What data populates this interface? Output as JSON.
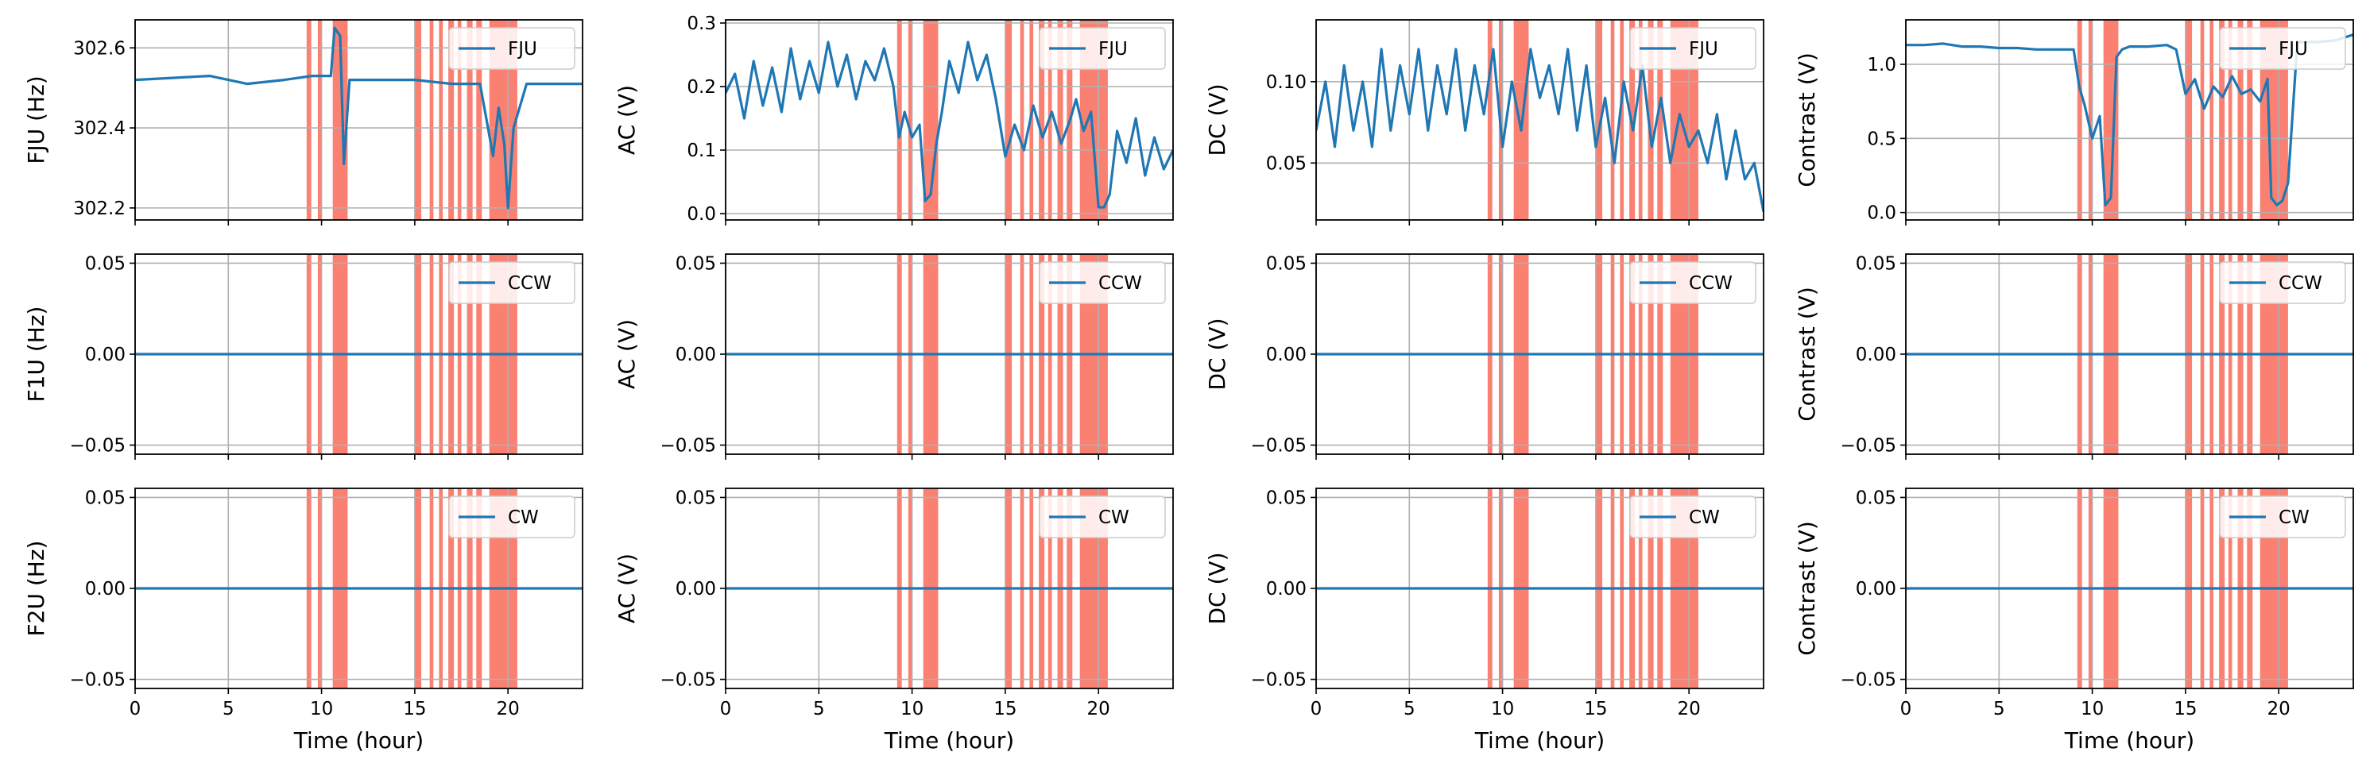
{
  "colors": {
    "series_line": "#1f77b4",
    "event_band": "#fa8072",
    "grid": "#b0b0b0",
    "axis": "#000000",
    "legend_border": "#cccccc"
  },
  "chart_data": {
    "type": "line",
    "layout": "3x4 grid of subplots, shared x axis per column",
    "x_label": "Time (hour)",
    "x_lim": [
      0,
      24
    ],
    "x_ticks": [
      0,
      5,
      10,
      15,
      20
    ],
    "x_tick_labels": [
      "0",
      "5",
      "10",
      "15",
      "20"
    ],
    "grid": true,
    "legend_position": "upper right",
    "highlighted_intervals_hours": [
      [
        9.2,
        9.45
      ],
      [
        9.8,
        10.0
      ],
      [
        10.6,
        11.4
      ],
      [
        15.0,
        15.35
      ],
      [
        15.8,
        16.0
      ],
      [
        16.3,
        16.5
      ],
      [
        16.8,
        17.1
      ],
      [
        17.3,
        17.5
      ],
      [
        17.8,
        18.1
      ],
      [
        18.3,
        18.6
      ],
      [
        19.0,
        20.5
      ]
    ],
    "rows": [
      {
        "legend": "FJU",
        "panels": [
          {
            "ylabel": "FJU (Hz)",
            "ylim": [
              302.17,
              302.67
            ],
            "yticks": [
              302.2,
              302.4,
              302.6
            ],
            "ytick_labels": [
              "302.2",
              "302.4",
              "302.6"
            ],
            "series": {
              "x": [
                0,
                2,
                4,
                5,
                6,
                8,
                9.5,
                10.5,
                10.7,
                11.0,
                11.2,
                11.5,
                13,
                15,
                17,
                18.5,
                19.2,
                19.5,
                19.8,
                20.0,
                20.3,
                21,
                22.5,
                24
              ],
              "y": [
                302.52,
                302.525,
                302.53,
                302.52,
                302.51,
                302.52,
                302.53,
                302.53,
                302.65,
                302.63,
                302.31,
                302.52,
                302.52,
                302.52,
                302.51,
                302.51,
                302.33,
                302.45,
                302.36,
                302.2,
                302.4,
                302.51,
                302.51,
                302.51
              ]
            }
          },
          {
            "ylabel": "AC (V)",
            "ylim": [
              -0.01,
              0.305
            ],
            "yticks": [
              0.0,
              0.1,
              0.2,
              0.3
            ],
            "ytick_labels": [
              "0.0",
              "0.1",
              "0.2",
              "0.3"
            ],
            "series": {
              "x": [
                0,
                0.5,
                1,
                1.5,
                2,
                2.5,
                3,
                3.5,
                4,
                4.5,
                5,
                5.5,
                6,
                6.5,
                7,
                7.5,
                8,
                8.5,
                9,
                9.3,
                9.6,
                10.0,
                10.4,
                10.7,
                11.0,
                11.3,
                11.6,
                12.0,
                12.5,
                13.0,
                13.5,
                14.0,
                14.5,
                15.0,
                15.5,
                16.0,
                16.5,
                17.0,
                17.5,
                18.0,
                18.5,
                18.8,
                19.2,
                19.6,
                20.0,
                20.3,
                20.6,
                21.0,
                21.5,
                22.0,
                22.5,
                23.0,
                23.5,
                24.0
              ],
              "y": [
                0.19,
                0.22,
                0.15,
                0.24,
                0.17,
                0.23,
                0.16,
                0.26,
                0.18,
                0.24,
                0.19,
                0.27,
                0.2,
                0.25,
                0.18,
                0.24,
                0.21,
                0.26,
                0.2,
                0.12,
                0.16,
                0.12,
                0.14,
                0.02,
                0.03,
                0.11,
                0.16,
                0.24,
                0.19,
                0.27,
                0.21,
                0.25,
                0.18,
                0.09,
                0.14,
                0.1,
                0.17,
                0.12,
                0.16,
                0.11,
                0.15,
                0.18,
                0.13,
                0.16,
                0.01,
                0.01,
                0.03,
                0.13,
                0.08,
                0.15,
                0.06,
                0.12,
                0.07,
                0.1
              ]
            }
          },
          {
            "ylabel": "DC (V)",
            "ylim": [
              0.015,
              0.138
            ],
            "yticks": [
              0.05,
              0.1
            ],
            "ytick_labels": [
              "0.05",
              "0.10"
            ],
            "series": {
              "x": [
                0,
                0.5,
                1,
                1.5,
                2,
                2.5,
                3,
                3.5,
                4,
                4.5,
                5,
                5.5,
                6,
                6.5,
                7,
                7.5,
                8,
                8.5,
                9,
                9.5,
                10,
                10.5,
                11,
                11.5,
                12,
                12.5,
                13,
                13.5,
                14,
                14.5,
                15,
                15.5,
                16,
                16.5,
                17,
                17.5,
                18,
                18.5,
                19,
                19.5,
                20,
                20.5,
                21,
                21.5,
                22,
                22.5,
                23,
                23.5,
                24
              ],
              "y": [
                0.07,
                0.1,
                0.06,
                0.11,
                0.07,
                0.1,
                0.06,
                0.12,
                0.07,
                0.11,
                0.08,
                0.12,
                0.07,
                0.11,
                0.08,
                0.12,
                0.07,
                0.11,
                0.08,
                0.12,
                0.06,
                0.1,
                0.07,
                0.12,
                0.09,
                0.11,
                0.08,
                0.12,
                0.07,
                0.11,
                0.06,
                0.09,
                0.05,
                0.1,
                0.07,
                0.11,
                0.06,
                0.09,
                0.05,
                0.08,
                0.06,
                0.07,
                0.05,
                0.08,
                0.04,
                0.07,
                0.04,
                0.05,
                0.02
              ]
            }
          },
          {
            "ylabel": "Contrast (V)",
            "ylim": [
              -0.05,
              1.3
            ],
            "yticks": [
              0.0,
              0.5,
              1.0
            ],
            "ytick_labels": [
              "0.0",
              "0.5",
              "1.0"
            ],
            "series": {
              "x": [
                0,
                1,
                2,
                3,
                4,
                5,
                6,
                7,
                8,
                9,
                9.3,
                9.6,
                10.0,
                10.4,
                10.7,
                11.0,
                11.3,
                11.6,
                12,
                13,
                14,
                14.5,
                15.0,
                15.5,
                16.0,
                16.5,
                17.0,
                17.5,
                18.0,
                18.5,
                19.0,
                19.4,
                19.6,
                19.9,
                20.2,
                20.5,
                21.0,
                22.0,
                23.0,
                23.5,
                24.0
              ],
              "y": [
                1.13,
                1.13,
                1.14,
                1.12,
                1.12,
                1.11,
                1.11,
                1.1,
                1.1,
                1.1,
                0.85,
                0.72,
                0.5,
                0.65,
                0.05,
                0.1,
                1.05,
                1.1,
                1.12,
                1.12,
                1.13,
                1.1,
                0.8,
                0.9,
                0.7,
                0.85,
                0.78,
                0.92,
                0.8,
                0.83,
                0.75,
                0.9,
                0.1,
                0.05,
                0.08,
                0.2,
                1.15,
                1.15,
                1.16,
                1.18,
                1.2
              ]
            }
          }
        ]
      },
      {
        "legend": "CCW",
        "panels": [
          {
            "ylabel": "F1U (Hz)",
            "ylim": [
              -0.055,
              0.055
            ],
            "yticks": [
              -0.05,
              0.0,
              0.05
            ],
            "ytick_labels": [
              "−0.05",
              "0.00",
              "0.05"
            ],
            "series": {
              "x": [
                0,
                24
              ],
              "y": [
                0,
                0
              ]
            }
          },
          {
            "ylabel": "AC (V)",
            "ylim": [
              -0.055,
              0.055
            ],
            "yticks": [
              -0.05,
              0.0,
              0.05
            ],
            "ytick_labels": [
              "−0.05",
              "0.00",
              "0.05"
            ],
            "series": {
              "x": [
                0,
                24
              ],
              "y": [
                0,
                0
              ]
            }
          },
          {
            "ylabel": "DC (V)",
            "ylim": [
              -0.055,
              0.055
            ],
            "yticks": [
              -0.05,
              0.0,
              0.05
            ],
            "ytick_labels": [
              "−0.05",
              "0.00",
              "0.05"
            ],
            "series": {
              "x": [
                0,
                24
              ],
              "y": [
                0,
                0
              ]
            }
          },
          {
            "ylabel": "Contrast (V)",
            "ylim": [
              -0.055,
              0.055
            ],
            "yticks": [
              -0.05,
              0.0,
              0.05
            ],
            "ytick_labels": [
              "−0.05",
              "0.00",
              "0.05"
            ],
            "series": {
              "x": [
                0,
                24
              ],
              "y": [
                0,
                0
              ]
            }
          }
        ]
      },
      {
        "legend": "CW",
        "panels": [
          {
            "ylabel": "F2U (Hz)",
            "ylim": [
              -0.055,
              0.055
            ],
            "yticks": [
              -0.05,
              0.0,
              0.05
            ],
            "ytick_labels": [
              "−0.05",
              "0.00",
              "0.05"
            ],
            "series": {
              "x": [
                0,
                24
              ],
              "y": [
                0,
                0
              ]
            }
          },
          {
            "ylabel": "AC (V)",
            "ylim": [
              -0.055,
              0.055
            ],
            "yticks": [
              -0.05,
              0.0,
              0.05
            ],
            "ytick_labels": [
              "−0.05",
              "0.00",
              "0.05"
            ],
            "series": {
              "x": [
                0,
                24
              ],
              "y": [
                0,
                0
              ]
            }
          },
          {
            "ylabel": "DC (V)",
            "ylim": [
              -0.055,
              0.055
            ],
            "yticks": [
              -0.05,
              0.0,
              0.05
            ],
            "ytick_labels": [
              "−0.05",
              "0.00",
              "0.05"
            ],
            "series": {
              "x": [
                0,
                24
              ],
              "y": [
                0,
                0
              ]
            }
          },
          {
            "ylabel": "Contrast (V)",
            "ylim": [
              -0.055,
              0.055
            ],
            "yticks": [
              -0.05,
              0.0,
              0.05
            ],
            "ytick_labels": [
              "−0.05",
              "0.00",
              "0.05"
            ],
            "series": {
              "x": [
                0,
                24
              ],
              "y": [
                0,
                0
              ]
            }
          }
        ]
      }
    ]
  }
}
